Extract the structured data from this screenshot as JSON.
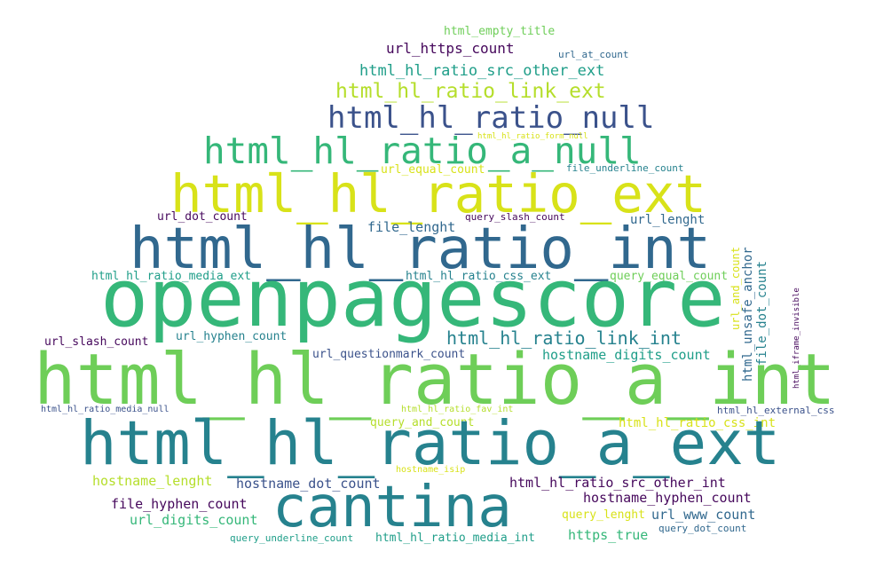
{
  "palette": {
    "dark_purple": "#46085c",
    "indigo": "#3b528b",
    "blue": "#31688e",
    "teal_blue": "#26828e",
    "teal": "#1f9e89",
    "green": "#35b779",
    "light_green": "#6ece58",
    "lime": "#b5de2b",
    "yellow": "#d8e219"
  },
  "words": [
    {
      "text": "html_empty_title",
      "color": "#6ece58"
    },
    {
      "text": "url_https_count",
      "color": "#46085c"
    },
    {
      "text": "url_at_count",
      "color": "#31688e"
    },
    {
      "text": "html_hl_ratio_src_other_ext",
      "color": "#1f9e89"
    },
    {
      "text": "html_hl_ratio_link_ext",
      "color": "#b5de2b"
    },
    {
      "text": "html_hl_ratio_null",
      "color": "#3b528b"
    },
    {
      "text": "html_hl_ratio_form_null",
      "color": "#d8e219"
    },
    {
      "text": "html_hl_ratio_a_null",
      "color": "#35b779"
    },
    {
      "text": "url_equal_count",
      "color": "#d8e219"
    },
    {
      "text": "file_underline_count",
      "color": "#26828e"
    },
    {
      "text": "html_hl_ratio_ext",
      "color": "#d8e219"
    },
    {
      "text": "url_dot_count",
      "color": "#46085c"
    },
    {
      "text": "query_slash_count",
      "color": "#46085c"
    },
    {
      "text": "url_lenght",
      "color": "#31688e"
    },
    {
      "text": "file_lenght",
      "color": "#31688e"
    },
    {
      "text": "html_hl_ratio_int",
      "color": "#31688e"
    },
    {
      "text": "html_hl_ratio_media_ext",
      "color": "#1f9e89"
    },
    {
      "text": "html_hl_ratio_css_ext",
      "color": "#26828e"
    },
    {
      "text": "query_equal_count",
      "color": "#6ece58"
    },
    {
      "text": "url_and_count",
      "color": "#d8e219"
    },
    {
      "text": "html_unsafe_anchor",
      "color": "#31688e"
    },
    {
      "text": "file_dot_count",
      "color": "#26828e"
    },
    {
      "text": "html_iframe_invisible",
      "color": "#46085c"
    },
    {
      "text": "openpagescore",
      "color": "#35b779"
    },
    {
      "text": "url_slash_count",
      "color": "#46085c"
    },
    {
      "text": "url_hyphen_count",
      "color": "#26828e"
    },
    {
      "text": "html_hl_ratio_link_int",
      "color": "#26828e"
    },
    {
      "text": "url_questionmark_count",
      "color": "#3b528b"
    },
    {
      "text": "hostname_digits_count",
      "color": "#1f9e89"
    },
    {
      "text": "html_hl_ratio_a_int",
      "color": "#6ece58"
    },
    {
      "text": "html_hl_ratio_media_null",
      "color": "#3b528b"
    },
    {
      "text": "html_hl_ratio_fav_int",
      "color": "#b5de2b"
    },
    {
      "text": "html_hl_external_css",
      "color": "#3b528b"
    },
    {
      "text": "query_and_count",
      "color": "#b5de2b"
    },
    {
      "text": "html_hl_ratio_css_int",
      "color": "#d8e219"
    },
    {
      "text": "html_hl_ratio_a_ext",
      "color": "#26828e"
    },
    {
      "text": "hostname_isip",
      "color": "#d8e219"
    },
    {
      "text": "hostname_lenght",
      "color": "#b5de2b"
    },
    {
      "text": "hostname_dot_count",
      "color": "#3b528b"
    },
    {
      "text": "html_hl_ratio_src_other_int",
      "color": "#46085c"
    },
    {
      "text": "hostname_hyphen_count",
      "color": "#46085c"
    },
    {
      "text": "file_hyphen_count",
      "color": "#46085c"
    },
    {
      "text": "cantina",
      "color": "#26828e"
    },
    {
      "text": "url_digits_count",
      "color": "#35b779"
    },
    {
      "text": "query_lenght",
      "color": "#d8e219"
    },
    {
      "text": "url_www_count",
      "color": "#31688e"
    },
    {
      "text": "query_dot_count",
      "color": "#31688e"
    },
    {
      "text": "query_underline_count",
      "color": "#1f9e89"
    },
    {
      "text": "html_hl_ratio_media_int",
      "color": "#1f9e89"
    },
    {
      "text": "https_true",
      "color": "#35b779"
    }
  ]
}
